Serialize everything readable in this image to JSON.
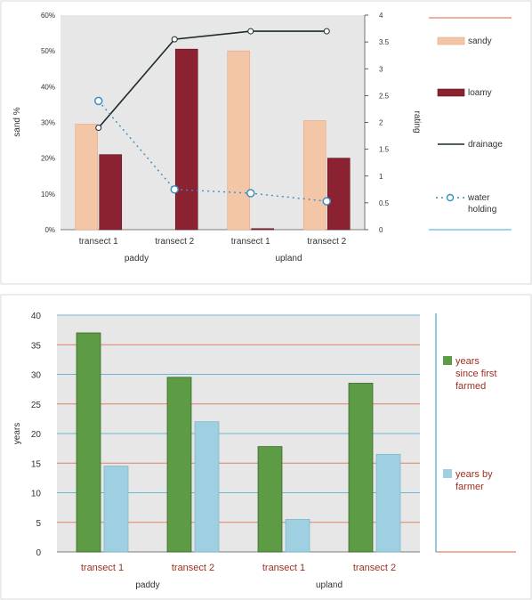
{
  "colors": {
    "sandy": "#f2c6a6",
    "loamy": "#8a2232",
    "drainage": "#1e2a2a",
    "water_holding": "#3a8fc4",
    "years_since_first_farmed": "#5e9b45",
    "years_by_farmer": "#9ed0e2",
    "plot_bg": "#e7e7e7",
    "grid_red": "#e06040",
    "grid_blue": "#40a8d0",
    "frame": "#d8d8d8"
  },
  "chart_data": [
    {
      "type": "bar",
      "categories": [
        "transect 1",
        "transect 2",
        "transect 1",
        "transect 2"
      ],
      "groups": [
        "paddy",
        "upland"
      ],
      "ylabel": "sand %",
      "y2label": "rating",
      "yticks": [
        "0%",
        "10%",
        "20%",
        "30%",
        "40%",
        "50%",
        "60%"
      ],
      "y2ticks": [
        "0",
        "0.5",
        "1",
        "1.5",
        "2",
        "2.5",
        "3",
        "3.5",
        "4"
      ],
      "ylim": [
        0,
        60
      ],
      "y2lim": [
        0,
        4
      ],
      "series": [
        {
          "name": "sandy",
          "kind": "bar",
          "axis": "y",
          "values": [
            29.5,
            0,
            50,
            30.5
          ]
        },
        {
          "name": "loamy",
          "kind": "bar",
          "axis": "y",
          "values": [
            21,
            50.5,
            0.3,
            20
          ]
        },
        {
          "name": "drainage",
          "kind": "line",
          "axis": "y2",
          "values": [
            1.9,
            3.55,
            3.7,
            3.7
          ]
        },
        {
          "name": "water holding",
          "kind": "dots",
          "axis": "y2",
          "values": [
            2.4,
            0.75,
            0.68,
            0.53
          ]
        }
      ],
      "legend": [
        "sandy",
        "loamy",
        "drainage",
        "water holding"
      ],
      "legend_position": "right"
    },
    {
      "type": "bar",
      "categories": [
        "transect 1",
        "transect 2",
        "transect 1",
        "transect 2"
      ],
      "groups": [
        "paddy",
        "upland"
      ],
      "ylabel": "years",
      "yticks": [
        "0",
        "5",
        "10",
        "15",
        "20",
        "25",
        "30",
        "35",
        "40"
      ],
      "ylim": [
        0,
        40
      ],
      "series": [
        {
          "name": "years since first farmed",
          "values": [
            37,
            29.5,
            17.8,
            28.5
          ]
        },
        {
          "name": "years by farmer",
          "values": [
            14.5,
            22,
            5.5,
            16.5
          ]
        }
      ],
      "legend": [
        "years since first farmed",
        "years by farmer"
      ],
      "legend_position": "right"
    }
  ]
}
